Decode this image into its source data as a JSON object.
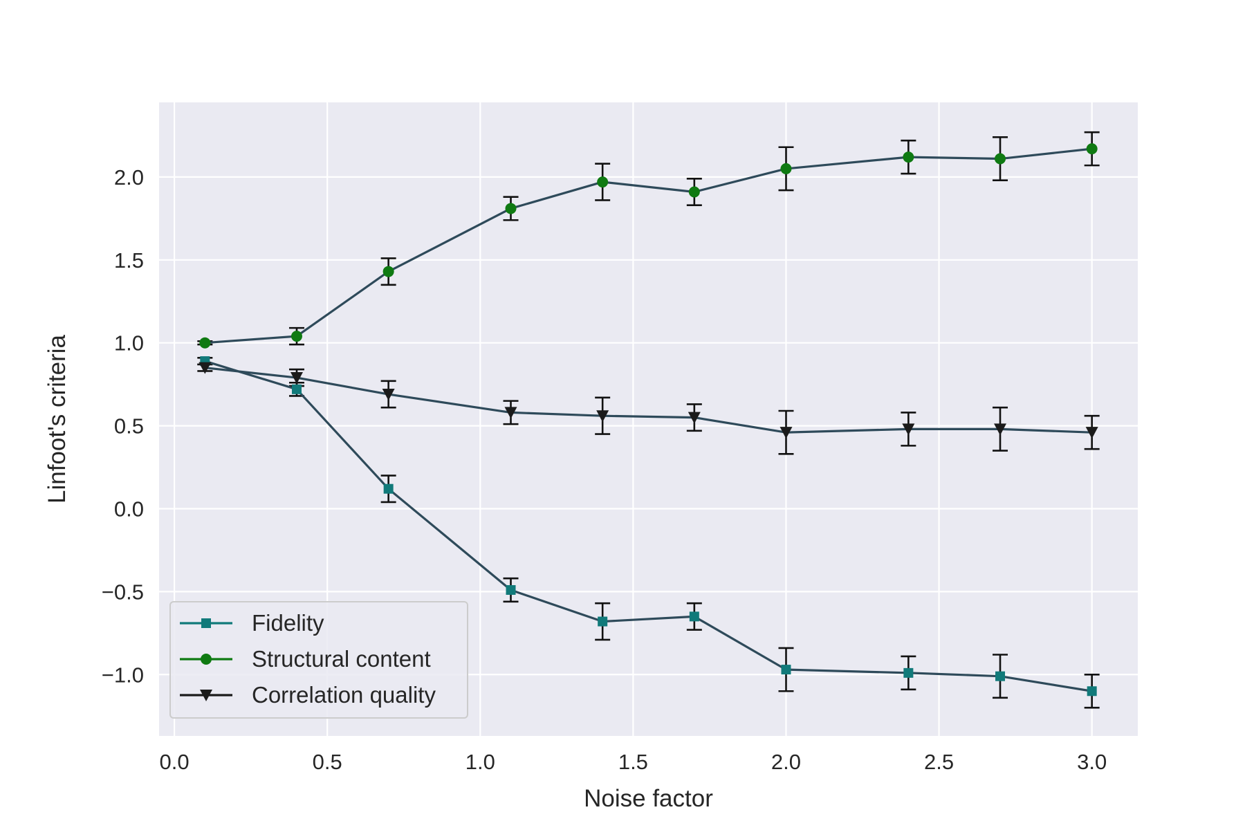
{
  "chart_data": {
    "type": "line",
    "title": "",
    "xlabel": "Noise factor",
    "ylabel": "Linfoot's criteria",
    "xlim": [
      -0.05,
      3.15
    ],
    "ylim": [
      -1.37,
      2.45
    ],
    "xticks": [
      0.0,
      0.5,
      1.0,
      1.5,
      2.0,
      2.5,
      3.0
    ],
    "xtick_labels": [
      "0.0",
      "0.5",
      "1.0",
      "1.5",
      "2.0",
      "2.5",
      "3.0"
    ],
    "yticks": [
      -1.0,
      -0.5,
      0.0,
      0.5,
      1.0,
      1.5,
      2.0
    ],
    "ytick_labels": [
      "−1.0",
      "−0.5",
      "0.0",
      "0.5",
      "1.0",
      "1.5",
      "2.0"
    ],
    "grid": true,
    "background": "#eaeaf2",
    "grid_color": "#ffffff",
    "line_color": "#2e4a5a",
    "errorbar_color": "#111111",
    "legend_position": "lower-left",
    "x": [
      0.1,
      0.4,
      0.7,
      1.1,
      1.4,
      1.7,
      2.0,
      2.4,
      2.7,
      3.0
    ],
    "series": [
      {
        "name": "Fidelity",
        "marker": "square",
        "color": "#117a7a",
        "values": [
          0.89,
          0.72,
          0.12,
          -0.49,
          -0.68,
          -0.65,
          -0.97,
          -0.99,
          -1.01,
          -1.1
        ],
        "errors": [
          0.02,
          0.04,
          0.08,
          0.07,
          0.11,
          0.08,
          0.13,
          0.1,
          0.13,
          0.1
        ]
      },
      {
        "name": "Structural content",
        "marker": "circle",
        "color": "#0f7a12",
        "values": [
          1.0,
          1.04,
          1.43,
          1.81,
          1.97,
          1.91,
          2.05,
          2.12,
          2.11,
          2.17
        ],
        "errors": [
          0.01,
          0.05,
          0.08,
          0.07,
          0.11,
          0.08,
          0.13,
          0.1,
          0.13,
          0.1
        ]
      },
      {
        "name": "Correlation quality",
        "marker": "triangle-down",
        "color": "#1b1b1b",
        "values": [
          0.85,
          0.79,
          0.69,
          0.58,
          0.56,
          0.55,
          0.46,
          0.48,
          0.48,
          0.46
        ],
        "errors": [
          0.02,
          0.05,
          0.08,
          0.07,
          0.11,
          0.08,
          0.13,
          0.1,
          0.13,
          0.1
        ]
      }
    ]
  }
}
